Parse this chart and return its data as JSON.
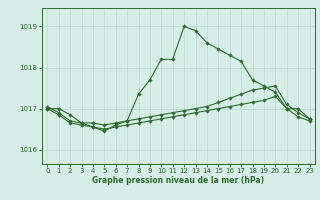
{
  "xlabel": "Graphe pression niveau de la mer (hPa)",
  "background_color": "#d6ede8",
  "grid_color": "#b8d8d0",
  "line_color": "#2d6b2d",
  "spine_color": "#2d6b2d",
  "xlim": [
    -0.5,
    23.5
  ],
  "ylim": [
    1015.65,
    1019.45
  ],
  "yticks": [
    1016,
    1017,
    1018,
    1019
  ],
  "xticks": [
    0,
    1,
    2,
    3,
    4,
    5,
    6,
    7,
    8,
    9,
    10,
    11,
    12,
    13,
    14,
    15,
    16,
    17,
    18,
    19,
    20,
    21,
    22,
    23
  ],
  "line1_x": [
    0,
    1,
    2,
    3,
    4,
    5,
    6,
    7,
    8,
    9,
    10,
    11,
    12,
    13,
    14,
    15,
    16,
    17,
    18,
    19,
    20,
    21,
    22,
    23
  ],
  "line1_y": [
    1017.0,
    1017.0,
    1016.85,
    1016.65,
    1016.55,
    1016.45,
    1016.6,
    1016.7,
    1017.35,
    1017.7,
    1018.2,
    1018.2,
    1019.0,
    1018.9,
    1018.6,
    1018.45,
    1018.3,
    1018.15,
    1017.7,
    1017.55,
    1017.4,
    1017.0,
    1017.0,
    1016.75
  ],
  "line2_x": [
    0,
    1,
    2,
    3,
    4,
    5,
    6,
    7,
    8,
    9,
    10,
    11,
    12,
    13,
    14,
    15,
    16,
    17,
    18,
    19,
    20,
    21,
    22,
    23
  ],
  "line2_y": [
    1017.0,
    1016.85,
    1016.65,
    1016.6,
    1016.55,
    1016.5,
    1016.55,
    1016.6,
    1016.65,
    1016.7,
    1016.75,
    1016.8,
    1016.85,
    1016.9,
    1016.95,
    1017.0,
    1017.05,
    1017.1,
    1017.15,
    1017.2,
    1017.3,
    1017.0,
    1016.8,
    1016.7
  ],
  "line3_x": [
    0,
    1,
    2,
    3,
    4,
    5,
    6,
    7,
    8,
    9,
    10,
    11,
    12,
    13,
    14,
    15,
    16,
    17,
    18,
    19,
    20,
    21,
    22,
    23
  ],
  "line3_y": [
    1017.05,
    1016.9,
    1016.7,
    1016.65,
    1016.65,
    1016.6,
    1016.65,
    1016.7,
    1016.75,
    1016.8,
    1016.85,
    1016.9,
    1016.95,
    1017.0,
    1017.05,
    1017.15,
    1017.25,
    1017.35,
    1017.45,
    1017.5,
    1017.55,
    1017.1,
    1016.9,
    1016.75
  ],
  "tick_labelsize": 5.0,
  "xlabel_fontsize": 5.5,
  "linewidth": 0.8,
  "markersize": 1.8
}
